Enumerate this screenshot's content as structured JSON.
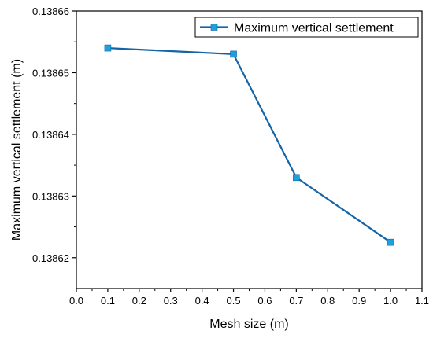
{
  "chart_data": {
    "type": "line",
    "xlabel": "Mesh size (m)",
    "ylabel": "Maximum vertical settlement (m)",
    "xlim": [
      0.0,
      1.1
    ],
    "ylim": [
      0.138615,
      0.13866
    ],
    "x_ticks": [
      "0.0",
      "0.1",
      "0.2",
      "0.3",
      "0.4",
      "0.5",
      "0.6",
      "0.7",
      "0.8",
      "0.9",
      "1.0",
      "1.1"
    ],
    "y_ticks": [
      "0.13862",
      "0.13863",
      "0.13864",
      "0.13865",
      "0.13866"
    ],
    "grid": false,
    "legend_position": "top-right",
    "series": [
      {
        "name": "Maximum vertical settlement",
        "color": "#1464A8",
        "marker_color": "#1EA0DC",
        "x": [
          0.1,
          0.5,
          0.7,
          1.0
        ],
        "y": [
          0.138654,
          0.138653,
          0.138633,
          0.1386225
        ]
      }
    ]
  }
}
